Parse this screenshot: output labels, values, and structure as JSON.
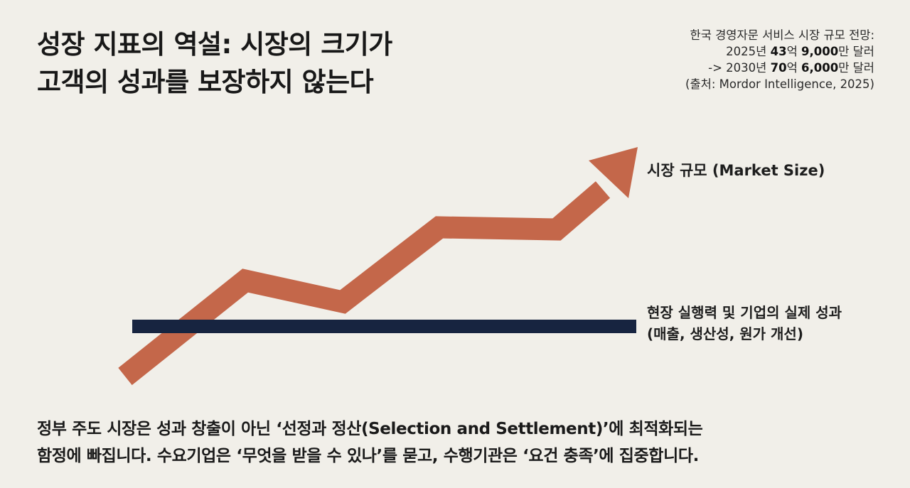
{
  "title": {
    "line1": "성장 지표의 역설: 시장의 크기가",
    "line2": "고객의 성과를 보장하지 않는다"
  },
  "forecast": {
    "heading": "한국 경영자문 서비스 시장 규모 전망:",
    "y2025_prefix": "2025년 ",
    "y2025_value_a": "43",
    "y2025_unit_a": "억 ",
    "y2025_value_b": "9,000",
    "y2025_suffix": "만 달러",
    "y2030_prefix": "-> 2030년 ",
    "y2030_value_a": "70",
    "y2030_unit_a": "억 ",
    "y2030_value_b": "6,000",
    "y2030_suffix": "만 달러",
    "source": "(출처: Mordor Intelligence, 2025)"
  },
  "diagram": {
    "market_label": "시장 규모 (Market Size)",
    "actual_label_line1": "현장 실행력 및 기업의 실제 성과",
    "actual_label_line2": "(매출, 생산성, 원가 개선)",
    "colors": {
      "market_arrow": "#c4674a",
      "actual_bar": "#172440"
    }
  },
  "caption": {
    "line1": "정부 주도 시장은 성과 창출이 아닌 ‘선정과 정산(Selection and Settlement)’에 최적화되는",
    "line2": "함정에 빠집니다. 수요기업은 ‘무엇을 받을 수 있나’를 묻고, 수행기관은 ‘요건 충족’에 집중합니다."
  }
}
